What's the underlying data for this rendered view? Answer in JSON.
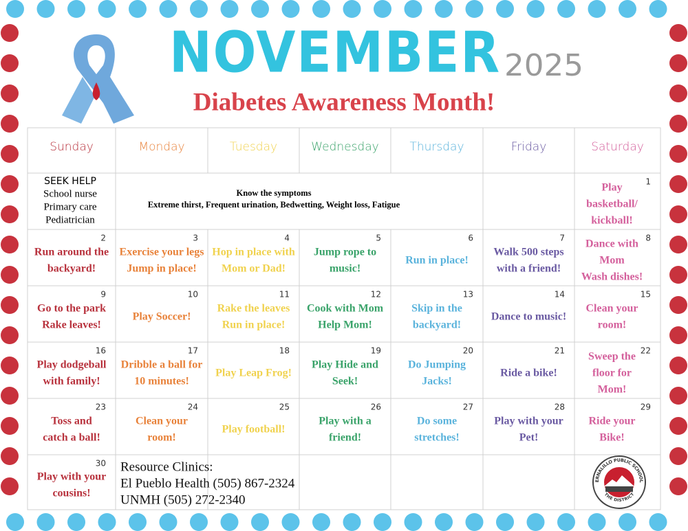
{
  "header": {
    "month": "NOVEMBER",
    "year": "2025",
    "subtitle": "Diabetes Awareness Month!"
  },
  "calendar": {
    "days": [
      "Sunday",
      "Monday",
      "Tuesday",
      "Wednesday",
      "Thursday",
      "Friday",
      "Saturday"
    ],
    "help": [
      "SEEK HELP",
      "School nurse",
      "Primary care",
      "Pediatrician"
    ],
    "symptoms": {
      "title": "Know the symptoms",
      "text": "Extreme thirst, Frequent urination, Bedwetting, Weight loss, Fatigue"
    },
    "cells": [
      {
        "day": 1,
        "lines": [
          "Play",
          "basketball/",
          "kickball!"
        ]
      },
      {
        "day": 2,
        "lines": [
          "Run around the",
          "backyard!"
        ]
      },
      {
        "day": 3,
        "lines": [
          "Exercise your legs",
          "Jump in place!"
        ]
      },
      {
        "day": 4,
        "lines": [
          "Hop in place with",
          "Mom or Dad!"
        ]
      },
      {
        "day": 5,
        "lines": [
          "Jump rope to",
          "music!"
        ]
      },
      {
        "day": 6,
        "lines": [
          "Run in place!"
        ]
      },
      {
        "day": 7,
        "lines": [
          "Walk 500 steps",
          "with a friend!"
        ]
      },
      {
        "day": 8,
        "lines": [
          "Dance with",
          "Mom",
          "Wash dishes!"
        ]
      },
      {
        "day": 9,
        "lines": [
          "Go to the park",
          "Rake leaves!"
        ]
      },
      {
        "day": 10,
        "lines": [
          "Play Soccer!"
        ]
      },
      {
        "day": 11,
        "lines": [
          "Rake the leaves",
          "Run in place!"
        ]
      },
      {
        "day": 12,
        "lines": [
          "Cook with Mom",
          "Help Mom!"
        ]
      },
      {
        "day": 13,
        "lines": [
          "Skip in the",
          "backyard!"
        ]
      },
      {
        "day": 14,
        "lines": [
          "Dance to music!"
        ]
      },
      {
        "day": 15,
        "lines": [
          "Clean your",
          "room!"
        ]
      },
      {
        "day": 16,
        "lines": [
          "Play dodgeball",
          "with family!"
        ]
      },
      {
        "day": 17,
        "lines": [
          "Dribble a ball for",
          "10 minutes!"
        ]
      },
      {
        "day": 18,
        "lines": [
          "Play Leap Frog!"
        ]
      },
      {
        "day": 19,
        "lines": [
          "Play Hide and",
          "Seek!"
        ]
      },
      {
        "day": 20,
        "lines": [
          "Do Jumping",
          "Jacks!"
        ]
      },
      {
        "day": 21,
        "lines": [
          "Ride a bike!"
        ]
      },
      {
        "day": 22,
        "lines": [
          "Sweep the",
          "floor for",
          "Mom!"
        ]
      },
      {
        "day": 23,
        "lines": [
          "Toss and",
          "catch a ball!"
        ]
      },
      {
        "day": 24,
        "lines": [
          "Clean your",
          "room!"
        ]
      },
      {
        "day": 25,
        "lines": [
          "Play football!"
        ]
      },
      {
        "day": 26,
        "lines": [
          "Play with a",
          "friend!"
        ]
      },
      {
        "day": 27,
        "lines": [
          "Do some",
          "stretches!"
        ]
      },
      {
        "day": 28,
        "lines": [
          "Play with your",
          "Pet!"
        ]
      },
      {
        "day": 29,
        "lines": [
          "Ride your",
          "Bike!"
        ]
      },
      {
        "day": 30,
        "lines": [
          "Play with your",
          "cousins!"
        ]
      }
    ],
    "resources": [
      "Resource Clinics:",
      "El Pueblo Health (505) 867-2324",
      "UNMH (505) 272-2340"
    ]
  },
  "logo": {
    "name": "BERNALILLO PUBLIC SCHOOLS",
    "tagline": "THE DISTRICT"
  }
}
